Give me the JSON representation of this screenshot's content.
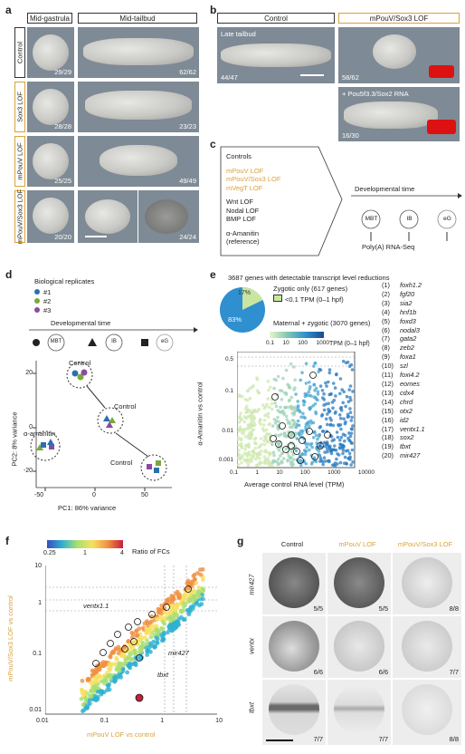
{
  "panel_a": {
    "label": "a",
    "col_headers": [
      "Mid-gastrula",
      "Mid-tailbud"
    ],
    "rows": [
      {
        "label": "Control",
        "count_left": "29/29",
        "count_right": "62/62"
      },
      {
        "label": "Sox3 LOF",
        "count_left": "28/28",
        "count_right": "23/23"
      },
      {
        "label": "mPouV LOF",
        "count_left": "25/25",
        "count_right": "49/49"
      },
      {
        "label": "mPouV/Sox3 LOF",
        "count_left": "20/20",
        "count_right": "24/24"
      }
    ]
  },
  "panel_b": {
    "label": "b",
    "headers": [
      "Control",
      "mPouV/Sox3 LOF"
    ],
    "stage": "Late tailbud",
    "count_control": "44/47",
    "count_lof": "58/62",
    "rescue_label": "+ Pou5f3.3/Sox2 RNA",
    "count_rescue": "16/30"
  },
  "panel_c": {
    "label": "c",
    "controls_title": "Controls",
    "lof_orange": [
      "mPouV LOF",
      "mPouV/Sox3 LOF",
      "mVegT LOF"
    ],
    "lof_black": [
      "Wnt LOF",
      "Nodal LOF",
      "BMP LOF"
    ],
    "amanitin": [
      "α-Amanitin",
      "(reference)"
    ],
    "timeline_title": "Developmental time",
    "stages": [
      "MBT",
      "IB",
      "eG"
    ],
    "output": "Poly(A) RNA-Seq"
  },
  "panel_d": {
    "label": "d",
    "replicates_title": "Biological replicates",
    "replicates": [
      "#1",
      "#2",
      "#3"
    ],
    "time_title": "Developmental time",
    "stages": [
      "MBT",
      "IB",
      "eG"
    ],
    "group_labels": [
      "Control",
      "Control",
      "α-amanitin",
      "Control"
    ],
    "xlabel": "PC1: 86% variance",
    "ylabel": "PC2: 8% variance",
    "xticks": [
      "-50",
      "0",
      "50"
    ],
    "yticks": [
      "20",
      "0",
      "-20"
    ]
  },
  "panel_e": {
    "label": "e",
    "title": "3687 genes with detectable transcript level reductions",
    "pie_zygotic": "Zygotic only (617 genes)",
    "pie_threshold": "<0.1 TPM (0–1 hpf)",
    "pie_maternal": "Maternal + zygotic (3070 genes)",
    "pct_small": "17%",
    "pct_big": "83%",
    "colorbar_ticks": [
      "0.1",
      "10",
      "100",
      "1000"
    ],
    "colorbar_label": "TPM (0–1 hpf)",
    "ylabel": "α-Amanitin vs control",
    "xlabel": "Average control RNA level (TPM)",
    "yticks": [
      "0.5",
      "0.1",
      "0.01",
      "0.001"
    ],
    "xticks": [
      "0.1",
      "1",
      "10",
      "100",
      "1000",
      "10000"
    ],
    "genes": [
      "foxh1.2",
      "fgf20",
      "sia2",
      "hnf1b",
      "foxd3",
      "nodal3",
      "gata2",
      "zeb2",
      "foxa1",
      "szl",
      "foxi4.2",
      "eomes",
      "cdx4",
      "chrd",
      "otx2",
      "id2",
      "ventx1.1",
      "sox2",
      "tbxt",
      "mir427"
    ]
  },
  "panel_f": {
    "label": "f",
    "colorbar_ticks": [
      "0.25",
      "1",
      "4"
    ],
    "colorbar_label": "Ratio of FCs",
    "xlabel": "mPouV LOF vs control",
    "ylabel": "mPouV/Sox3 LOF vs control",
    "xticks": [
      "0.01",
      "0.1",
      "1",
      "10"
    ],
    "yticks": [
      "10",
      "1",
      "0.1",
      "0.01"
    ],
    "annot": [
      "ventx1.1",
      "mir427",
      "tbxt"
    ]
  },
  "panel_g": {
    "label": "g",
    "col_headers": [
      "Control",
      "mPouV LOF",
      "mPouV/Sox3 LOF"
    ],
    "rows": [
      {
        "gene": "mir427",
        "counts": [
          "5/5",
          "5/5",
          "8/8"
        ]
      },
      {
        "gene": "ventx",
        "counts": [
          "6/6",
          "6/6",
          "7/7"
        ]
      },
      {
        "gene": "tbxt",
        "counts": [
          "7/7",
          "7/7",
          "8/8"
        ]
      }
    ]
  },
  "colors": {
    "orange": "#d9a23a",
    "photo_bg": "#7e8a95"
  }
}
